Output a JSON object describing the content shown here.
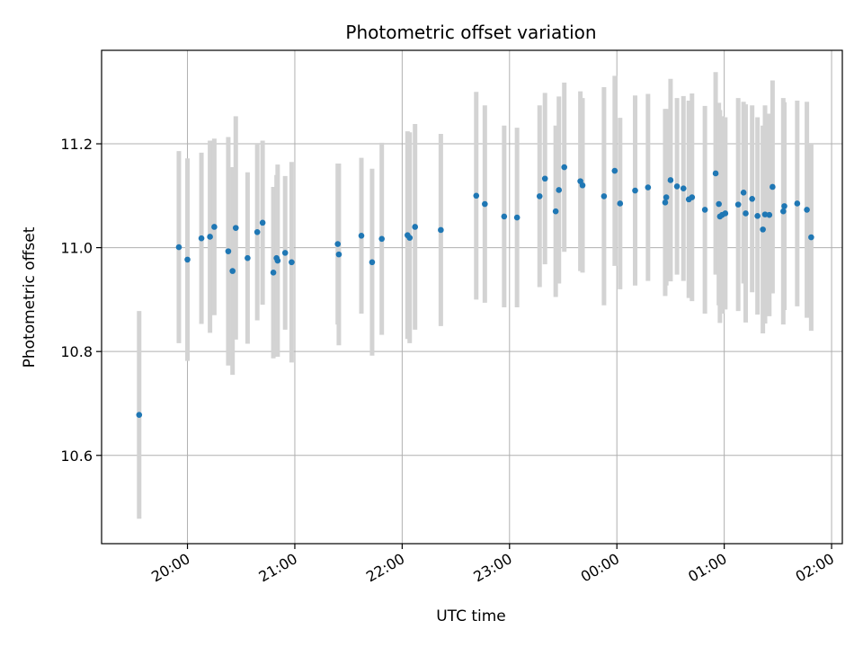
{
  "chart_data": {
    "type": "scatter",
    "title": "Photometric offset variation",
    "xlabel": "UTC time",
    "ylabel": "Photometric offset",
    "x_unit": "UTC clock time (hours relative to 00:00; negative = previous evening)",
    "xlim": [
      -4.8,
      2.1
    ],
    "ylim": [
      10.43,
      11.38
    ],
    "grid": true,
    "legend": "none",
    "x_ticks": [
      {
        "value": -4,
        "label": "20:00"
      },
      {
        "value": -3,
        "label": "21:00"
      },
      {
        "value": -2,
        "label": "22:00"
      },
      {
        "value": -1,
        "label": "23:00"
      },
      {
        "value": 0,
        "label": "00:00"
      },
      {
        "value": 1,
        "label": "01:00"
      },
      {
        "value": 2,
        "label": "02:00"
      }
    ],
    "y_ticks": [
      {
        "value": 10.6,
        "label": "10.6"
      },
      {
        "value": 10.8,
        "label": "10.8"
      },
      {
        "value": 11.0,
        "label": "11.0"
      },
      {
        "value": 11.2,
        "label": "11.2"
      }
    ],
    "colors": {
      "points": "#1f77b4",
      "errorbars": "#d3d3d3",
      "grid": "#b0b0b0"
    },
    "series": [
      {
        "points": [
          {
            "x": -4.45,
            "y": 10.678,
            "err": 0.2
          },
          {
            "x": -4.08,
            "y": 11.001,
            "err": 0.185
          },
          {
            "x": -4.0,
            "y": 10.977,
            "err": 0.195
          },
          {
            "x": -3.87,
            "y": 11.018,
            "err": 0.165
          },
          {
            "x": -3.79,
            "y": 11.021,
            "err": 0.185
          },
          {
            "x": -3.75,
            "y": 11.04,
            "err": 0.17
          },
          {
            "x": -3.62,
            "y": 10.993,
            "err": 0.22
          },
          {
            "x": -3.58,
            "y": 10.955,
            "err": 0.2
          },
          {
            "x": -3.55,
            "y": 11.038,
            "err": 0.215
          },
          {
            "x": -3.44,
            "y": 10.98,
            "err": 0.165
          },
          {
            "x": -3.35,
            "y": 11.03,
            "err": 0.17
          },
          {
            "x": -3.3,
            "y": 11.048,
            "err": 0.158
          },
          {
            "x": -3.2,
            "y": 10.952,
            "err": 0.165
          },
          {
            "x": -3.17,
            "y": 10.98,
            "err": 0.16
          },
          {
            "x": -3.16,
            "y": 10.975,
            "err": 0.185
          },
          {
            "x": -3.09,
            "y": 10.99,
            "err": 0.148
          },
          {
            "x": -3.03,
            "y": 10.972,
            "err": 0.193
          },
          {
            "x": -2.6,
            "y": 11.007,
            "err": 0.155
          },
          {
            "x": -2.59,
            "y": 10.987,
            "err": 0.175
          },
          {
            "x": -2.38,
            "y": 11.023,
            "err": 0.15
          },
          {
            "x": -2.28,
            "y": 10.972,
            "err": 0.18
          },
          {
            "x": -2.19,
            "y": 11.017,
            "err": 0.185
          },
          {
            "x": -1.95,
            "y": 11.024,
            "err": 0.2
          },
          {
            "x": -1.93,
            "y": 11.019,
            "err": 0.203
          },
          {
            "x": -1.88,
            "y": 11.04,
            "err": 0.198
          },
          {
            "x": -1.64,
            "y": 11.034,
            "err": 0.185
          },
          {
            "x": -1.31,
            "y": 11.1,
            "err": 0.2
          },
          {
            "x": -1.23,
            "y": 11.084,
            "err": 0.19
          },
          {
            "x": -1.05,
            "y": 11.06,
            "err": 0.175
          },
          {
            "x": -0.93,
            "y": 11.058,
            "err": 0.173
          },
          {
            "x": -0.72,
            "y": 11.099,
            "err": 0.175
          },
          {
            "x": -0.67,
            "y": 11.133,
            "err": 0.165
          },
          {
            "x": -0.57,
            "y": 11.07,
            "err": 0.165
          },
          {
            "x": -0.54,
            "y": 11.111,
            "err": 0.18
          },
          {
            "x": -0.49,
            "y": 11.155,
            "err": 0.163
          },
          {
            "x": -0.34,
            "y": 11.128,
            "err": 0.173
          },
          {
            "x": -0.32,
            "y": 11.12,
            "err": 0.168
          },
          {
            "x": -0.12,
            "y": 11.099,
            "err": 0.21
          },
          {
            "x": -0.02,
            "y": 11.148,
            "err": 0.183
          },
          {
            "x": 0.03,
            "y": 11.085,
            "err": 0.165
          },
          {
            "x": 0.17,
            "y": 11.11,
            "err": 0.183
          },
          {
            "x": 0.29,
            "y": 11.116,
            "err": 0.18
          },
          {
            "x": 0.45,
            "y": 11.087,
            "err": 0.18
          },
          {
            "x": 0.46,
            "y": 11.097,
            "err": 0.17
          },
          {
            "x": 0.5,
            "y": 11.13,
            "err": 0.195
          },
          {
            "x": 0.56,
            "y": 11.118,
            "err": 0.17
          },
          {
            "x": 0.62,
            "y": 11.114,
            "err": 0.178
          },
          {
            "x": 0.67,
            "y": 11.093,
            "err": 0.19
          },
          {
            "x": 0.7,
            "y": 11.097,
            "err": 0.2
          },
          {
            "x": 0.82,
            "y": 11.073,
            "err": 0.2
          },
          {
            "x": 0.92,
            "y": 11.143,
            "err": 0.195
          },
          {
            "x": 0.95,
            "y": 11.084,
            "err": 0.195
          },
          {
            "x": 0.96,
            "y": 11.06,
            "err": 0.205
          },
          {
            "x": 0.98,
            "y": 11.063,
            "err": 0.19
          },
          {
            "x": 1.01,
            "y": 11.066,
            "err": 0.185
          },
          {
            "x": 1.13,
            "y": 11.083,
            "err": 0.205
          },
          {
            "x": 1.18,
            "y": 11.106,
            "err": 0.175
          },
          {
            "x": 1.2,
            "y": 11.066,
            "err": 0.21
          },
          {
            "x": 1.26,
            "y": 11.094,
            "err": 0.18
          },
          {
            "x": 1.31,
            "y": 11.061,
            "err": 0.19
          },
          {
            "x": 1.36,
            "y": 11.035,
            "err": 0.2
          },
          {
            "x": 1.38,
            "y": 11.064,
            "err": 0.21
          },
          {
            "x": 1.42,
            "y": 11.063,
            "err": 0.195
          },
          {
            "x": 1.45,
            "y": 11.117,
            "err": 0.205
          },
          {
            "x": 1.55,
            "y": 11.07,
            "err": 0.218
          },
          {
            "x": 1.56,
            "y": 11.08,
            "err": 0.2
          },
          {
            "x": 1.68,
            "y": 11.085,
            "err": 0.198
          },
          {
            "x": 1.77,
            "y": 11.073,
            "err": 0.208
          },
          {
            "x": 1.81,
            "y": 11.02,
            "err": 0.18
          }
        ]
      }
    ]
  }
}
